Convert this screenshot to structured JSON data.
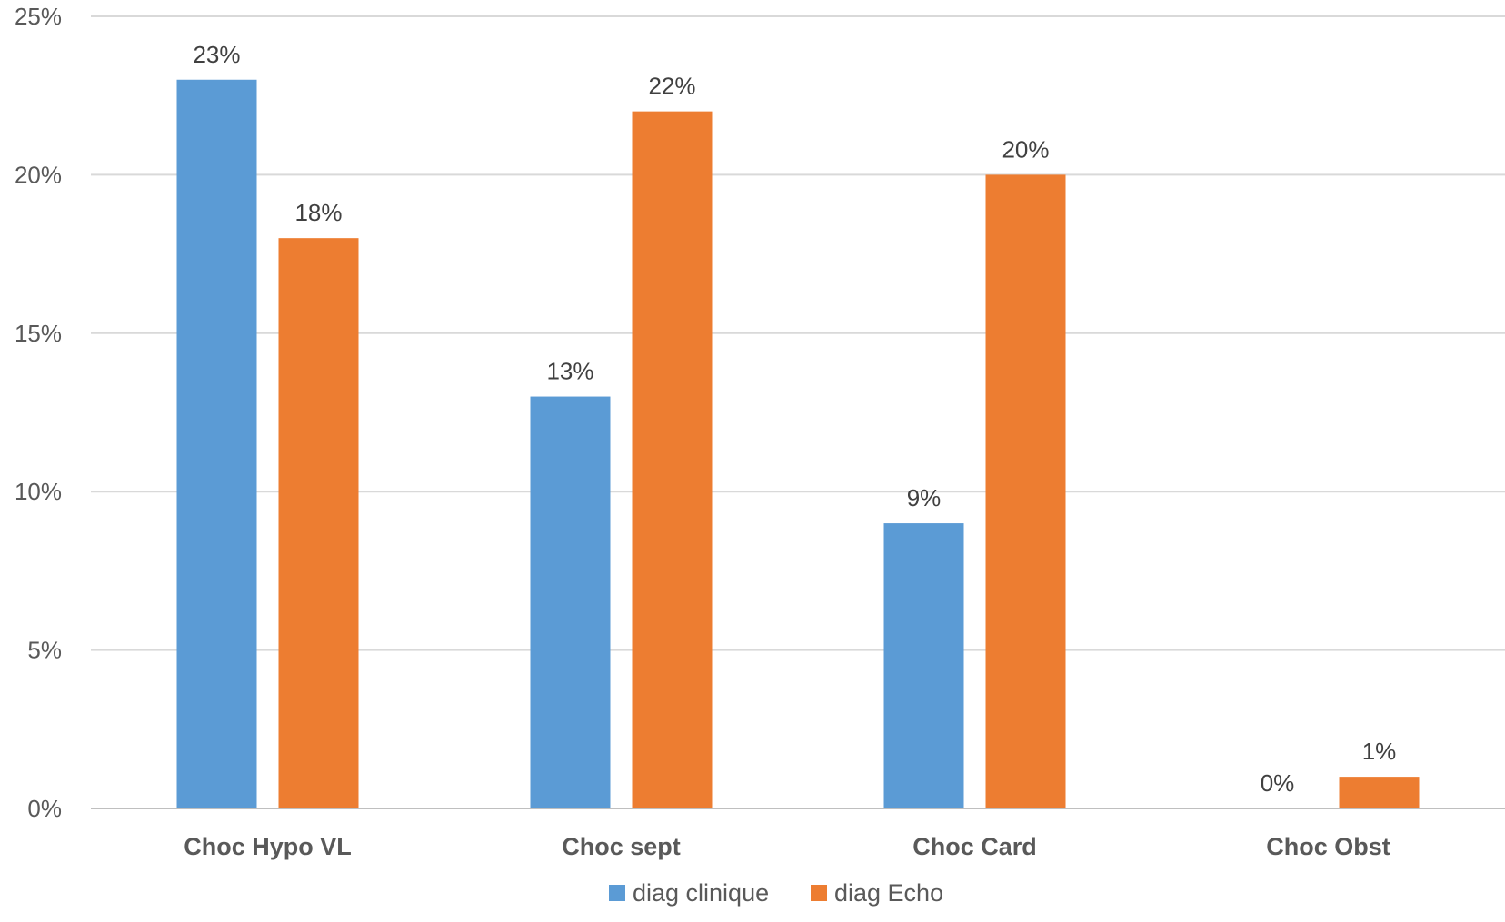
{
  "chart_data": {
    "type": "bar",
    "title": "",
    "xlabel": "",
    "ylabel": "",
    "categories": [
      "Choc Hypo VL",
      "Choc sept",
      "Choc Card",
      "Choc Obst"
    ],
    "series": [
      {
        "name": "diag clinique",
        "values": [
          23,
          13,
          9,
          0
        ],
        "labels": [
          "23%",
          "13%",
          "9%",
          "0%"
        ],
        "color": "#5b9bd5"
      },
      {
        "name": "diag Echo",
        "values": [
          18,
          22,
          20,
          1
        ],
        "labels": [
          "18%",
          "22%",
          "20%",
          "1%"
        ],
        "color": "#ed7d31"
      }
    ],
    "ylim": [
      0,
      25
    ],
    "yticks": [
      0,
      5,
      10,
      15,
      20,
      25
    ],
    "ytick_labels": [
      "0%",
      "5%",
      "10%",
      "15%",
      "20%",
      "25%"
    ],
    "grid": true,
    "legend_position": "bottom"
  }
}
